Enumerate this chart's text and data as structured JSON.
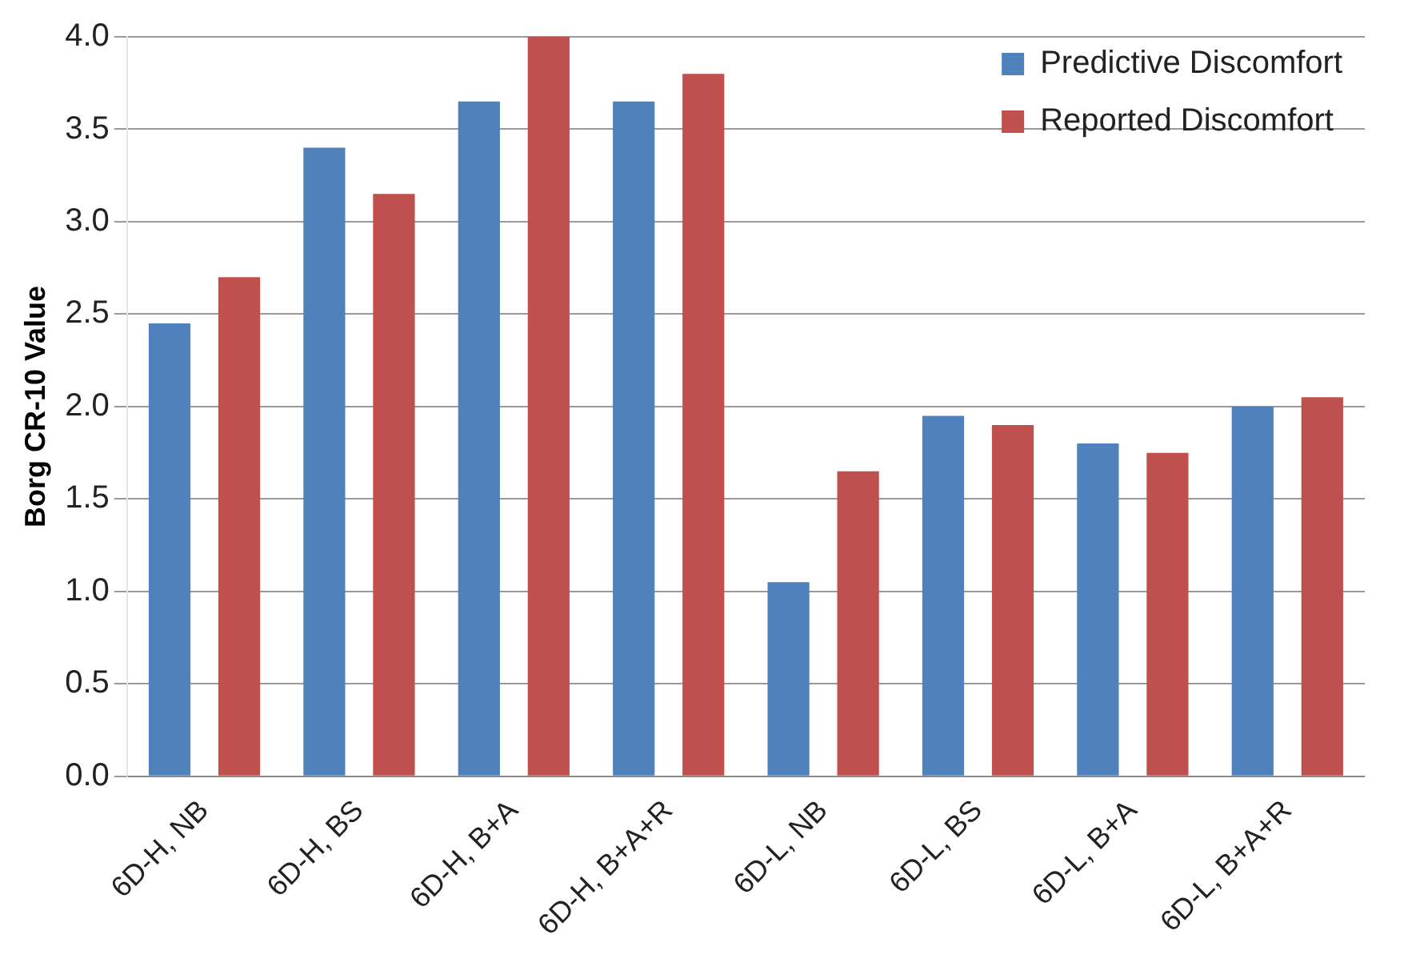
{
  "chart_data": {
    "type": "bar",
    "ylabel": "Borg CR-10 Value",
    "categories": [
      "6D-H, NB",
      "6D-H, BS",
      "6D-H, B+A",
      "6D-H, B+A+R",
      "6D-L, NB",
      "6D-L, BS",
      "6D-L, B+A",
      "6D-L, B+A+R"
    ],
    "series": [
      {
        "name": "Predictive Discomfort",
        "color": "#4f81bd",
        "values": [
          2.45,
          3.4,
          3.65,
          3.65,
          1.05,
          1.95,
          1.8,
          2.0
        ]
      },
      {
        "name": "Reported Discomfort",
        "color": "#c0504d",
        "values": [
          2.7,
          3.15,
          4.0,
          3.8,
          1.65,
          1.9,
          1.75,
          2.05
        ]
      }
    ],
    "ylim": [
      0,
      4
    ],
    "yticks": [
      {
        "value": 0,
        "label": "0.0"
      },
      {
        "value": 0.5,
        "label": "0.5"
      },
      {
        "value": 1,
        "label": "1.0"
      },
      {
        "value": 1.5,
        "label": "1.5"
      },
      {
        "value": 2,
        "label": "2.0"
      },
      {
        "value": 2.5,
        "label": "2.5"
      },
      {
        "value": 3,
        "label": "3.0"
      },
      {
        "value": 3.5,
        "label": "3.5"
      },
      {
        "value": 4,
        "label": "4.0"
      }
    ],
    "grid": "y",
    "legend": "top right"
  }
}
